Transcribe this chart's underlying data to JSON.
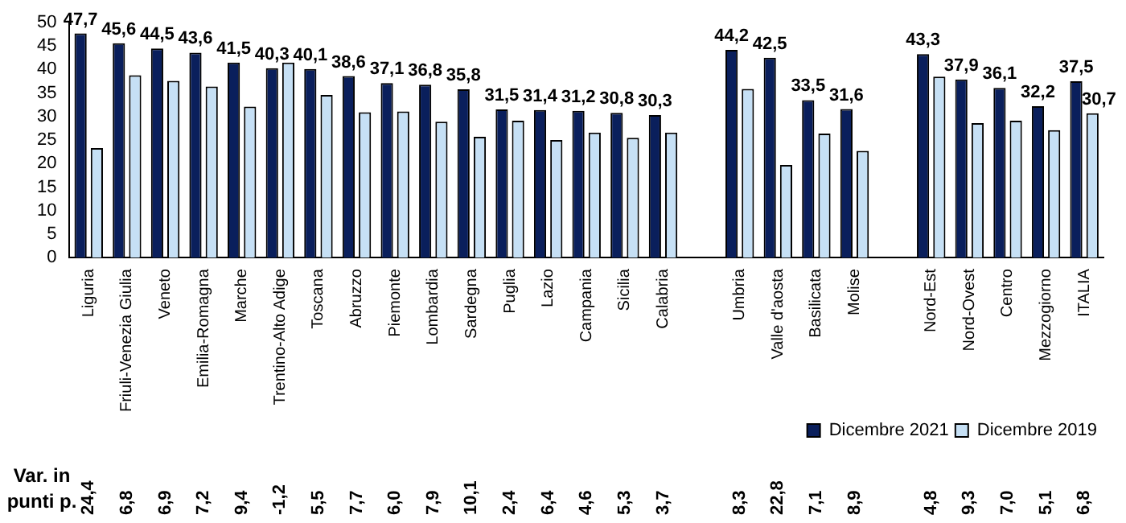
{
  "chart_data": {
    "type": "bar",
    "categories": [
      "Liguria",
      "Friuli-Venezia Giulia",
      "Veneto",
      "Emilia-Romagna",
      "Marche",
      "Trentino-Alto Adige",
      "Toscana",
      "Abruzzo",
      "Piemonte",
      "Lombardia",
      "Sardegna",
      "Puglia",
      "Lazio",
      "Campania",
      "Sicilia",
      "Calabria",
      null,
      "Umbria",
      "Valle d'aosta",
      "Basilicata",
      "Molise",
      null,
      "Nord-Est",
      "Nord-Ovest",
      "Centro",
      "Mezzogiorno",
      "ITALIA"
    ],
    "series": [
      {
        "name": "Dicembre 2021",
        "color": "#0a1f5c",
        "values": [
          47.7,
          45.6,
          44.5,
          43.6,
          41.5,
          40.3,
          40.1,
          38.6,
          37.1,
          36.8,
          35.8,
          31.5,
          31.4,
          31.2,
          30.8,
          30.3,
          null,
          44.2,
          42.5,
          33.5,
          31.6,
          null,
          43.3,
          37.9,
          36.1,
          32.2,
          37.5
        ],
        "value_labels": [
          "47,7",
          "45,6",
          "44,5",
          "43,6",
          "41,5",
          "40,3",
          "40,1",
          "38,6",
          "37,1",
          "36,8",
          "35,8",
          "31,5",
          "31,4",
          "31,2",
          "30,8",
          "30,3",
          null,
          "44,2",
          "42,5",
          "33,5",
          "31,6",
          null,
          "43,3",
          "37,9",
          "36,1",
          "32,2",
          "37,5"
        ]
      },
      {
        "name": "Dicembre 2019",
        "color": "#c6e0f5",
        "values": [
          23.3,
          38.8,
          37.6,
          36.4,
          32.1,
          41.5,
          34.6,
          30.9,
          31.1,
          28.9,
          25.7,
          29.1,
          25.0,
          26.6,
          25.5,
          26.6,
          null,
          35.9,
          19.7,
          26.4,
          22.7,
          null,
          38.5,
          28.6,
          29.1,
          27.1,
          30.7
        ],
        "value_labels": [
          null,
          null,
          null,
          null,
          null,
          null,
          null,
          null,
          null,
          null,
          null,
          null,
          null,
          null,
          null,
          null,
          null,
          null,
          null,
          null,
          null,
          null,
          null,
          null,
          null,
          null,
          "30,7"
        ]
      }
    ],
    "ylim": [
      0,
      50
    ],
    "yticks": [
      0,
      5,
      10,
      15,
      20,
      25,
      30,
      35,
      40,
      45,
      50
    ],
    "grid": false,
    "legend": "bottom",
    "annotations": [
      "Var. in punti p.",
      "24,4",
      "6,8",
      "6,9",
      "7,2",
      "9,4",
      "-1,2",
      "5,5",
      "7,7",
      "6,0",
      "7,9",
      "10,1",
      "2,4",
      "6,4",
      "4,6",
      "5,3",
      "3,7",
      "8,3",
      "22,8",
      "7,1",
      "8,9",
      "4,8",
      "9,3",
      "7,0",
      "5,1",
      "6,8"
    ]
  }
}
